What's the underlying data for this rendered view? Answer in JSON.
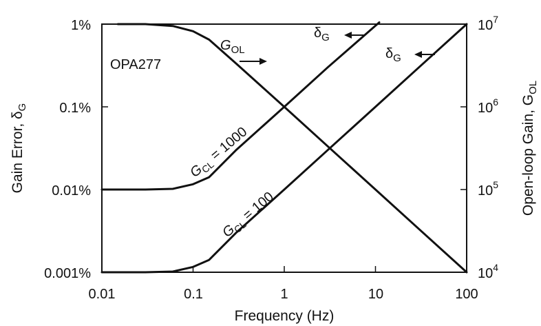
{
  "chart_data": {
    "type": "line",
    "x_scale": "log",
    "y_scale": "log",
    "xlim": [
      0.01,
      100
    ],
    "xlabel": "Frequency (Hz)",
    "x_ticks": [
      0.01,
      0.1,
      1,
      10,
      100
    ],
    "x_tick_labels": [
      "0.01",
      "0.1",
      "1",
      "10",
      "100"
    ],
    "y_left": {
      "label": "Gain Error, δ",
      "label_sub": "G",
      "lim": [
        0.001,
        1
      ],
      "ticks": [
        0.001,
        0.01,
        0.1,
        1
      ],
      "tick_labels": [
        "0.001%",
        "0.01%",
        "0.1%",
        "1%"
      ]
    },
    "y_right": {
      "label": "Open-loop Gain, G",
      "label_sub": "OL",
      "lim": [
        10000,
        10000000
      ],
      "ticks": [
        10000,
        100000,
        1000000,
        10000000
      ],
      "tick_bases": [
        "10",
        "10",
        "10",
        "10"
      ],
      "tick_exps": [
        "4",
        "5",
        "6",
        "7"
      ]
    },
    "grid": false,
    "series": [
      {
        "axis": "right",
        "x": [
          0.015,
          0.03,
          0.06,
          0.1,
          0.15,
          0.3,
          1,
          3,
          10,
          30,
          100
        ],
        "y": [
          10000000,
          10000000,
          9500000,
          8200000,
          6500000,
          3300000,
          1000000,
          333000,
          100000,
          33300,
          10000
        ]
      },
      {
        "axis": "left",
        "x": [
          0.01,
          0.03,
          0.06,
          0.1,
          0.15,
          0.3,
          1,
          3,
          11
        ],
        "y": [
          0.01,
          0.01,
          0.0102,
          0.0116,
          0.0141,
          0.0304,
          0.1,
          0.3,
          1.05
        ]
      },
      {
        "axis": "left",
        "x": [
          0.01,
          0.03,
          0.06,
          0.1,
          0.15,
          0.3,
          1,
          3,
          10,
          30,
          100
        ],
        "y": [
          0.001,
          0.001,
          0.00102,
          0.00116,
          0.00141,
          0.00304,
          0.01,
          0.03,
          0.1,
          0.3,
          1
        ]
      }
    ],
    "annotations": {
      "device": "OPA277",
      "gol": {
        "main": "G",
        "sub": "OL"
      },
      "gcl1000": {
        "main": "G",
        "sub": "CL",
        "rest": " = 1000"
      },
      "gcl100": {
        "main": "G",
        "sub": "CL",
        "rest": " = 100"
      },
      "delta": {
        "main": "δ",
        "sub": "G"
      }
    }
  }
}
